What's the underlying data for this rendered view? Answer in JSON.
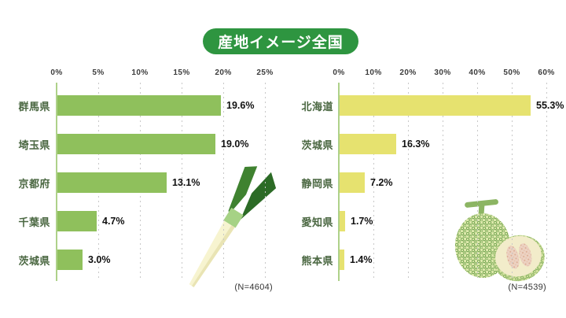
{
  "title": "産地イメージ全国",
  "colors": {
    "title_bg": "#2e9540",
    "title_text": "#ffffff",
    "axis_line": "#aed189",
    "gridline": "#c8c8c8",
    "category_text": "#4a6741",
    "value_text": "#111111",
    "tick_text": "#3c3c3c",
    "n_text": "#333333",
    "left_bar": "#8fc05c",
    "right_bar": "#e6e26f"
  },
  "chart_data": [
    {
      "type": "bar",
      "orientation": "horizontal",
      "product_icon": "green-onion",
      "categories": [
        "群馬県",
        "埼玉県",
        "京都府",
        "千葉県",
        "茨城県"
      ],
      "values": [
        19.6,
        19.0,
        13.1,
        4.7,
        3.0
      ],
      "value_labels": [
        "19.6%",
        "19.0%",
        "13.1%",
        "4.7%",
        "3.0%"
      ],
      "tick_labels": [
        "0%",
        "5%",
        "10%",
        "15%",
        "20%",
        "25%"
      ],
      "xlim": [
        0,
        25
      ],
      "grid": "dotted-vertical",
      "legend": "none",
      "bar_color": "#8fc05c",
      "n_label": "(N=4604)"
    },
    {
      "type": "bar",
      "orientation": "horizontal",
      "product_icon": "melon",
      "categories": [
        "北海道",
        "茨城県",
        "静岡県",
        "愛知県",
        "熊本県"
      ],
      "values": [
        55.3,
        16.3,
        7.2,
        1.7,
        1.4
      ],
      "value_labels": [
        "55.3%",
        "16.3%",
        "7.2%",
        "1.7%",
        "1.4%"
      ],
      "tick_labels": [
        "0%",
        "10%",
        "20%",
        "30%",
        "40%",
        "50%",
        "60%"
      ],
      "xlim": [
        0,
        60
      ],
      "grid": "dotted-vertical",
      "legend": "none",
      "bar_color": "#e6e26f",
      "n_label": "(N=4539)"
    }
  ]
}
